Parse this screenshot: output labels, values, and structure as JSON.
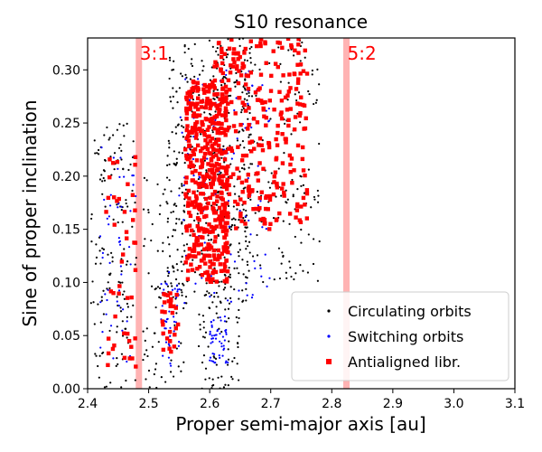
{
  "chart_data": {
    "type": "scatter",
    "title": "S10 resonance",
    "xlabel": "Proper semi-major axis [au]",
    "ylabel": "Sine of proper inclination",
    "xlim": [
      2.4,
      3.1
    ],
    "ylim": [
      0.0,
      0.33
    ],
    "x_ticks": [
      "2.4",
      "2.5",
      "2.6",
      "2.7",
      "2.8",
      "2.9",
      "3.0",
      "3.1"
    ],
    "y_ticks": [
      "0.00",
      "0.05",
      "0.10",
      "0.15",
      "0.20",
      "0.25",
      "0.30"
    ],
    "grid": false,
    "legend_position": "lower-right",
    "resonances": [
      {
        "label": "3:1",
        "a": 2.484,
        "color": "#ff0000",
        "band_color": "#ffb3b3"
      },
      {
        "label": "5:2",
        "a": 2.824,
        "color": "#ff0000",
        "band_color": "#ffb3b3"
      }
    ],
    "series": [
      {
        "name": "Circulating orbits",
        "color": "#000000",
        "marker": "dot",
        "clusters": [
          {
            "a": [
              2.405,
              2.48
            ],
            "s": [
              0.0,
              0.25
            ],
            "n": 140
          },
          {
            "a": [
              2.49,
              2.56
            ],
            "s": [
              0.0,
              0.2
            ],
            "n": 90
          },
          {
            "a": [
              2.53,
              2.67
            ],
            "s": [
              0.08,
              0.33
            ],
            "n": 380
          },
          {
            "a": [
              2.6,
              2.78
            ],
            "s": [
              0.1,
              0.33
            ],
            "n": 200
          },
          {
            "a": [
              2.58,
              2.65
            ],
            "s": [
              0.0,
              0.08
            ],
            "n": 60
          }
        ]
      },
      {
        "name": "Switching orbits",
        "color": "#0000ff",
        "marker": "dot",
        "clusters": [
          {
            "a": [
              2.42,
              2.48
            ],
            "s": [
              0.02,
              0.23
            ],
            "n": 50
          },
          {
            "a": [
              2.52,
              2.55
            ],
            "s": [
              0.02,
              0.11
            ],
            "n": 40
          },
          {
            "a": [
              2.6,
              2.63
            ],
            "s": [
              0.02,
              0.07
            ],
            "n": 50
          },
          {
            "a": [
              2.55,
              2.7
            ],
            "s": [
              0.08,
              0.3
            ],
            "n": 120
          }
        ]
      },
      {
        "name": "Antialigned libr.",
        "color": "#ff0000",
        "marker": "square",
        "clusters": [
          {
            "a": [
              2.43,
              2.48
            ],
            "s": [
              0.02,
              0.22
            ],
            "n": 45
          },
          {
            "a": [
              2.52,
              2.55
            ],
            "s": [
              0.03,
              0.09
            ],
            "n": 30
          },
          {
            "a": [
              2.56,
              2.63
            ],
            "s": [
              0.1,
              0.29
            ],
            "n": 420
          },
          {
            "a": [
              2.6,
              2.76
            ],
            "s": [
              0.15,
              0.33
            ],
            "n": 300
          }
        ]
      }
    ]
  }
}
